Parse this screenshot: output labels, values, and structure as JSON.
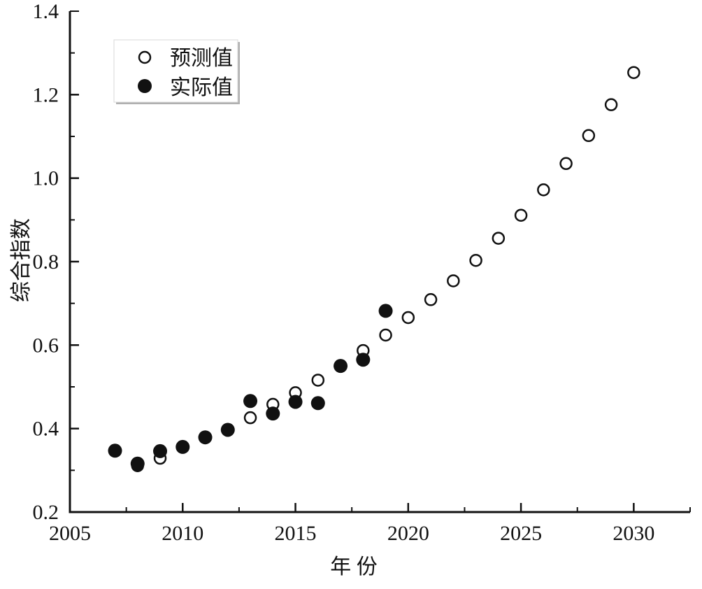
{
  "chart_data": {
    "type": "scatter",
    "title": "",
    "xlabel": "年 份",
    "ylabel": "综合指数",
    "xlim": [
      2005,
      2032.5
    ],
    "ylim": [
      0.2,
      1.4
    ],
    "xticks": [
      2005,
      2010,
      2015,
      2020,
      2025,
      2030
    ],
    "xtick_labels": [
      "2005",
      "2010",
      "2015",
      "2020",
      "2025",
      "2030"
    ],
    "yticks": [
      0.2,
      0.4,
      0.6,
      0.8,
      1.0,
      1.2,
      1.4
    ],
    "ytick_labels": [
      "0.2",
      "0.4",
      "0.6",
      "0.8",
      "1.0",
      "1.2",
      "1.4"
    ],
    "grid": false,
    "legend_position": "upper left",
    "series": [
      {
        "name": "预测值",
        "marker": "open-circle",
        "color": "#111111",
        "x": [
          2007,
          2008,
          2009,
          2010,
          2011,
          2012,
          2013,
          2014,
          2015,
          2016,
          2017,
          2018,
          2019,
          2020,
          2021,
          2022,
          2023,
          2024,
          2025,
          2026,
          2027,
          2028,
          2029,
          2030
        ],
        "values": [
          0.347,
          0.311,
          0.329,
          0.356,
          0.379,
          0.397,
          0.426,
          0.458,
          0.486,
          0.516,
          0.55,
          0.587,
          0.624,
          0.666,
          0.709,
          0.754,
          0.803,
          0.856,
          0.911,
          0.972,
          1.035,
          1.102,
          1.176,
          1.253
        ]
      },
      {
        "name": "实际值",
        "marker": "filled-circle",
        "color": "#111111",
        "x": [
          2007,
          2008,
          2009,
          2010,
          2011,
          2012,
          2013,
          2014,
          2015,
          2016,
          2017,
          2018,
          2019
        ],
        "values": [
          0.347,
          0.316,
          0.346,
          0.356,
          0.379,
          0.397,
          0.466,
          0.436,
          0.464,
          0.461,
          0.55,
          0.565,
          0.682
        ]
      }
    ]
  },
  "legend": {
    "items": [
      {
        "label": "预测值",
        "marker": "open-circle-icon"
      },
      {
        "label": "实际值",
        "marker": "filled-circle-icon"
      }
    ]
  },
  "axes": {
    "x_title": "年 份",
    "y_title": "综合指数"
  }
}
